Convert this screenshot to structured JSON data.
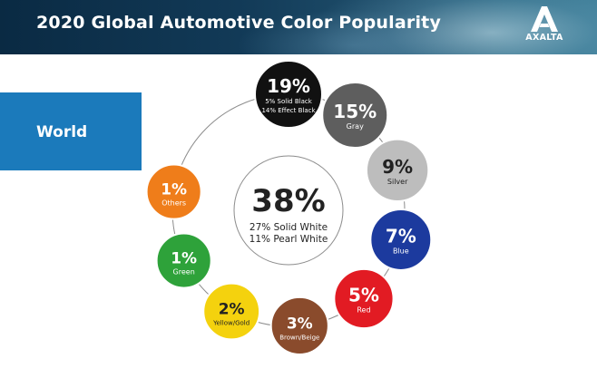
{
  "header": {
    "title": "2020 Global Automotive Color Popularity",
    "brand": "AXALTA"
  },
  "region": {
    "label": "World"
  },
  "chart_data": {
    "type": "pie",
    "title": "2020 Global Automotive Color Popularity",
    "center": {
      "name": "White",
      "value": 38,
      "percent_label": "38%",
      "sub_lines": [
        "27% Solid White",
        "11% Pearl White"
      ],
      "color": "#ffffff"
    },
    "slices": [
      {
        "name": "Black",
        "value": 19,
        "percent_label": "19%",
        "sub_lines": [
          "5% Solid Black",
          "14% Effect Black"
        ],
        "color": "#111111",
        "text_color": "#ffffff"
      },
      {
        "name": "Gray",
        "value": 15,
        "percent_label": "15%",
        "sub_lines": [
          "Gray"
        ],
        "color": "#5e5e5e",
        "text_color": "#ffffff"
      },
      {
        "name": "Silver",
        "value": 9,
        "percent_label": "9%",
        "sub_lines": [
          "Silver"
        ],
        "color": "#bdbdbd",
        "text_color": "#222222"
      },
      {
        "name": "Blue",
        "value": 7,
        "percent_label": "7%",
        "sub_lines": [
          "Blue"
        ],
        "color": "#1c3a9e",
        "text_color": "#ffffff"
      },
      {
        "name": "Red",
        "value": 5,
        "percent_label": "5%",
        "sub_lines": [
          "Red"
        ],
        "color": "#e21b23",
        "text_color": "#ffffff"
      },
      {
        "name": "Brown/Beige",
        "value": 3,
        "percent_label": "3%",
        "sub_lines": [
          "Brown/Beige"
        ],
        "color": "#8a4b2c",
        "text_color": "#ffffff"
      },
      {
        "name": "Yellow/Gold",
        "value": 2,
        "percent_label": "2%",
        "sub_lines": [
          "Yellow/Gold"
        ],
        "color": "#f4d20e",
        "text_color": "#222222"
      },
      {
        "name": "Green",
        "value": 1,
        "percent_label": "1%",
        "sub_lines": [
          "Green"
        ],
        "color": "#2ea23a",
        "text_color": "#ffffff"
      },
      {
        "name": "Others",
        "value": 1,
        "percent_label": "1%",
        "sub_lines": [
          "Others"
        ],
        "color": "#ef7d1a",
        "text_color": "#ffffff"
      }
    ]
  }
}
